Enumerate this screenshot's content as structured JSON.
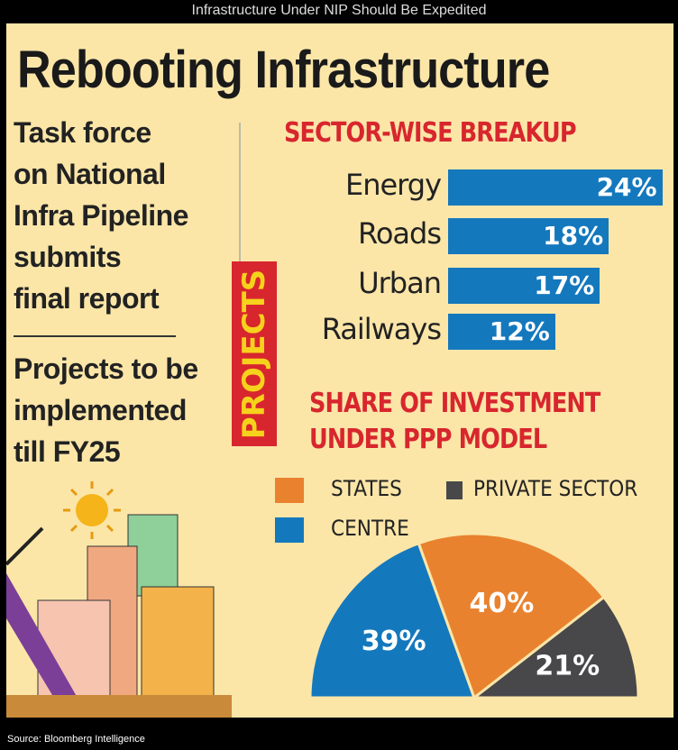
{
  "header": {
    "title": "Infrastructure Under NIP Should Be Expedited"
  },
  "infographic": {
    "headline": "Rebooting Infrastructure",
    "left_text_1": [
      "Task force",
      "on National",
      "Infra Pipeline",
      "submits",
      "final report"
    ],
    "left_text_2": [
      "Projects to be",
      "implemented",
      "till FY25"
    ],
    "side_label": "PROJECTS"
  },
  "chart_data": [
    {
      "type": "bar",
      "orientation": "horizontal",
      "title": "SECTOR-WISE BREAKUP",
      "categories": [
        "Energy",
        "Roads",
        "Urban",
        "Railways"
      ],
      "values": [
        24,
        18,
        17,
        12
      ],
      "data_labels": [
        "24%",
        "18%",
        "17%",
        "12%"
      ],
      "color": "#1478bd"
    },
    {
      "type": "pie",
      "style": "semicircle",
      "title": "SHARE OF INVESTMENT UNDER PPP MODEL",
      "title_lines": [
        "SHARE OF INVESTMENT",
        "UNDER PPP MODEL"
      ],
      "legend": [
        "STATES",
        "PRIVATE SECTOR",
        "CENTRE"
      ],
      "slices": [
        {
          "name": "CENTRE",
          "value": 39,
          "label": "39%",
          "color": "#1478bd"
        },
        {
          "name": "STATES",
          "value": 40,
          "label": "40%",
          "color": "#e9822f"
        },
        {
          "name": "PRIVATE SECTOR",
          "value": 21,
          "label": "21%",
          "color": "#48474a"
        }
      ],
      "legend_placement": "top-left"
    }
  ],
  "footer": {
    "source": "Source: Bloomberg Intelligence"
  }
}
